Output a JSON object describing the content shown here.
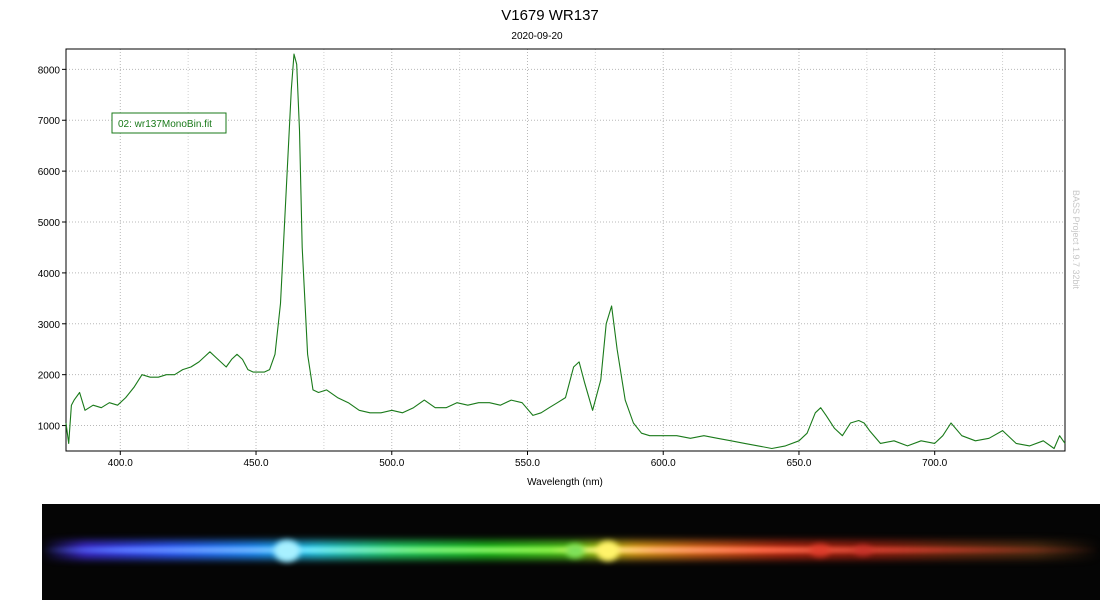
{
  "chart_data": {
    "type": "line",
    "title": "V1679  WR137",
    "subtitle": "2020-09-20",
    "xlabel": "Wavelength (nm)",
    "ylabel": "",
    "xlim": [
      380,
      748
    ],
    "ylim": [
      500,
      8400
    ],
    "x_ticks": [
      400,
      450,
      500,
      550,
      600,
      650,
      700
    ],
    "x_tick_labels": [
      "400.0",
      "450.0",
      "500.0",
      "550.0",
      "600.0",
      "650.0",
      "700.0"
    ],
    "y_ticks": [
      1000,
      2000,
      3000,
      4000,
      5000,
      6000,
      7000,
      8000
    ],
    "y_tick_labels": [
      "1000",
      "2000",
      "3000",
      "4000",
      "5000",
      "6000",
      "7000",
      "8000"
    ],
    "grid": true,
    "legend": "top-left",
    "watermark": "BASS Project 1.9.7 32bit",
    "series": [
      {
        "name": "02: wr137MonoBin.fit",
        "color": "#1a7a1a",
        "x": [
          380,
          381,
          382,
          383,
          385,
          387,
          390,
          393,
          396,
          399,
          402,
          405,
          408,
          411,
          414,
          417,
          420,
          423,
          426,
          429,
          431,
          433,
          435,
          437,
          439,
          441,
          443,
          445,
          447,
          449,
          451,
          453,
          455,
          457,
          459,
          461,
          463,
          464,
          465,
          466,
          467,
          469,
          471,
          473,
          476,
          480,
          484,
          488,
          492,
          496,
          500,
          504,
          508,
          512,
          516,
          520,
          524,
          528,
          532,
          536,
          540,
          544,
          548,
          552,
          555,
          558,
          561,
          564,
          567,
          569,
          571,
          574,
          577,
          579,
          581,
          583,
          586,
          589,
          592,
          595,
          600,
          605,
          610,
          615,
          620,
          625,
          630,
          635,
          640,
          645,
          650,
          653,
          656,
          658,
          660,
          663,
          666,
          669,
          672,
          674,
          676,
          680,
          685,
          690,
          695,
          700,
          703,
          706,
          710,
          715,
          720,
          725,
          730,
          735,
          740,
          744,
          746,
          748
        ],
        "y": [
          1050,
          650,
          1400,
          1500,
          1650,
          1300,
          1400,
          1350,
          1450,
          1400,
          1550,
          1750,
          2000,
          1950,
          1950,
          2000,
          2000,
          2100,
          2150,
          2250,
          2350,
          2450,
          2350,
          2250,
          2150,
          2300,
          2400,
          2300,
          2100,
          2050,
          2050,
          2050,
          2100,
          2400,
          3400,
          5500,
          7600,
          8300,
          8100,
          6800,
          4500,
          2400,
          1700,
          1650,
          1700,
          1550,
          1450,
          1300,
          1250,
          1250,
          1300,
          1250,
          1350,
          1500,
          1350,
          1350,
          1450,
          1400,
          1450,
          1450,
          1400,
          1500,
          1450,
          1200,
          1250,
          1350,
          1450,
          1550,
          2150,
          2250,
          1850,
          1300,
          1900,
          3000,
          3350,
          2500,
          1500,
          1050,
          850,
          800,
          800,
          800,
          750,
          800,
          750,
          700,
          650,
          600,
          550,
          600,
          700,
          850,
          1250,
          1350,
          1200,
          950,
          800,
          1050,
          1100,
          1050,
          900,
          650,
          700,
          600,
          700,
          650,
          800,
          1050,
          800,
          700,
          750,
          900,
          650,
          600,
          700,
          550,
          800,
          650
        ]
      }
    ]
  }
}
